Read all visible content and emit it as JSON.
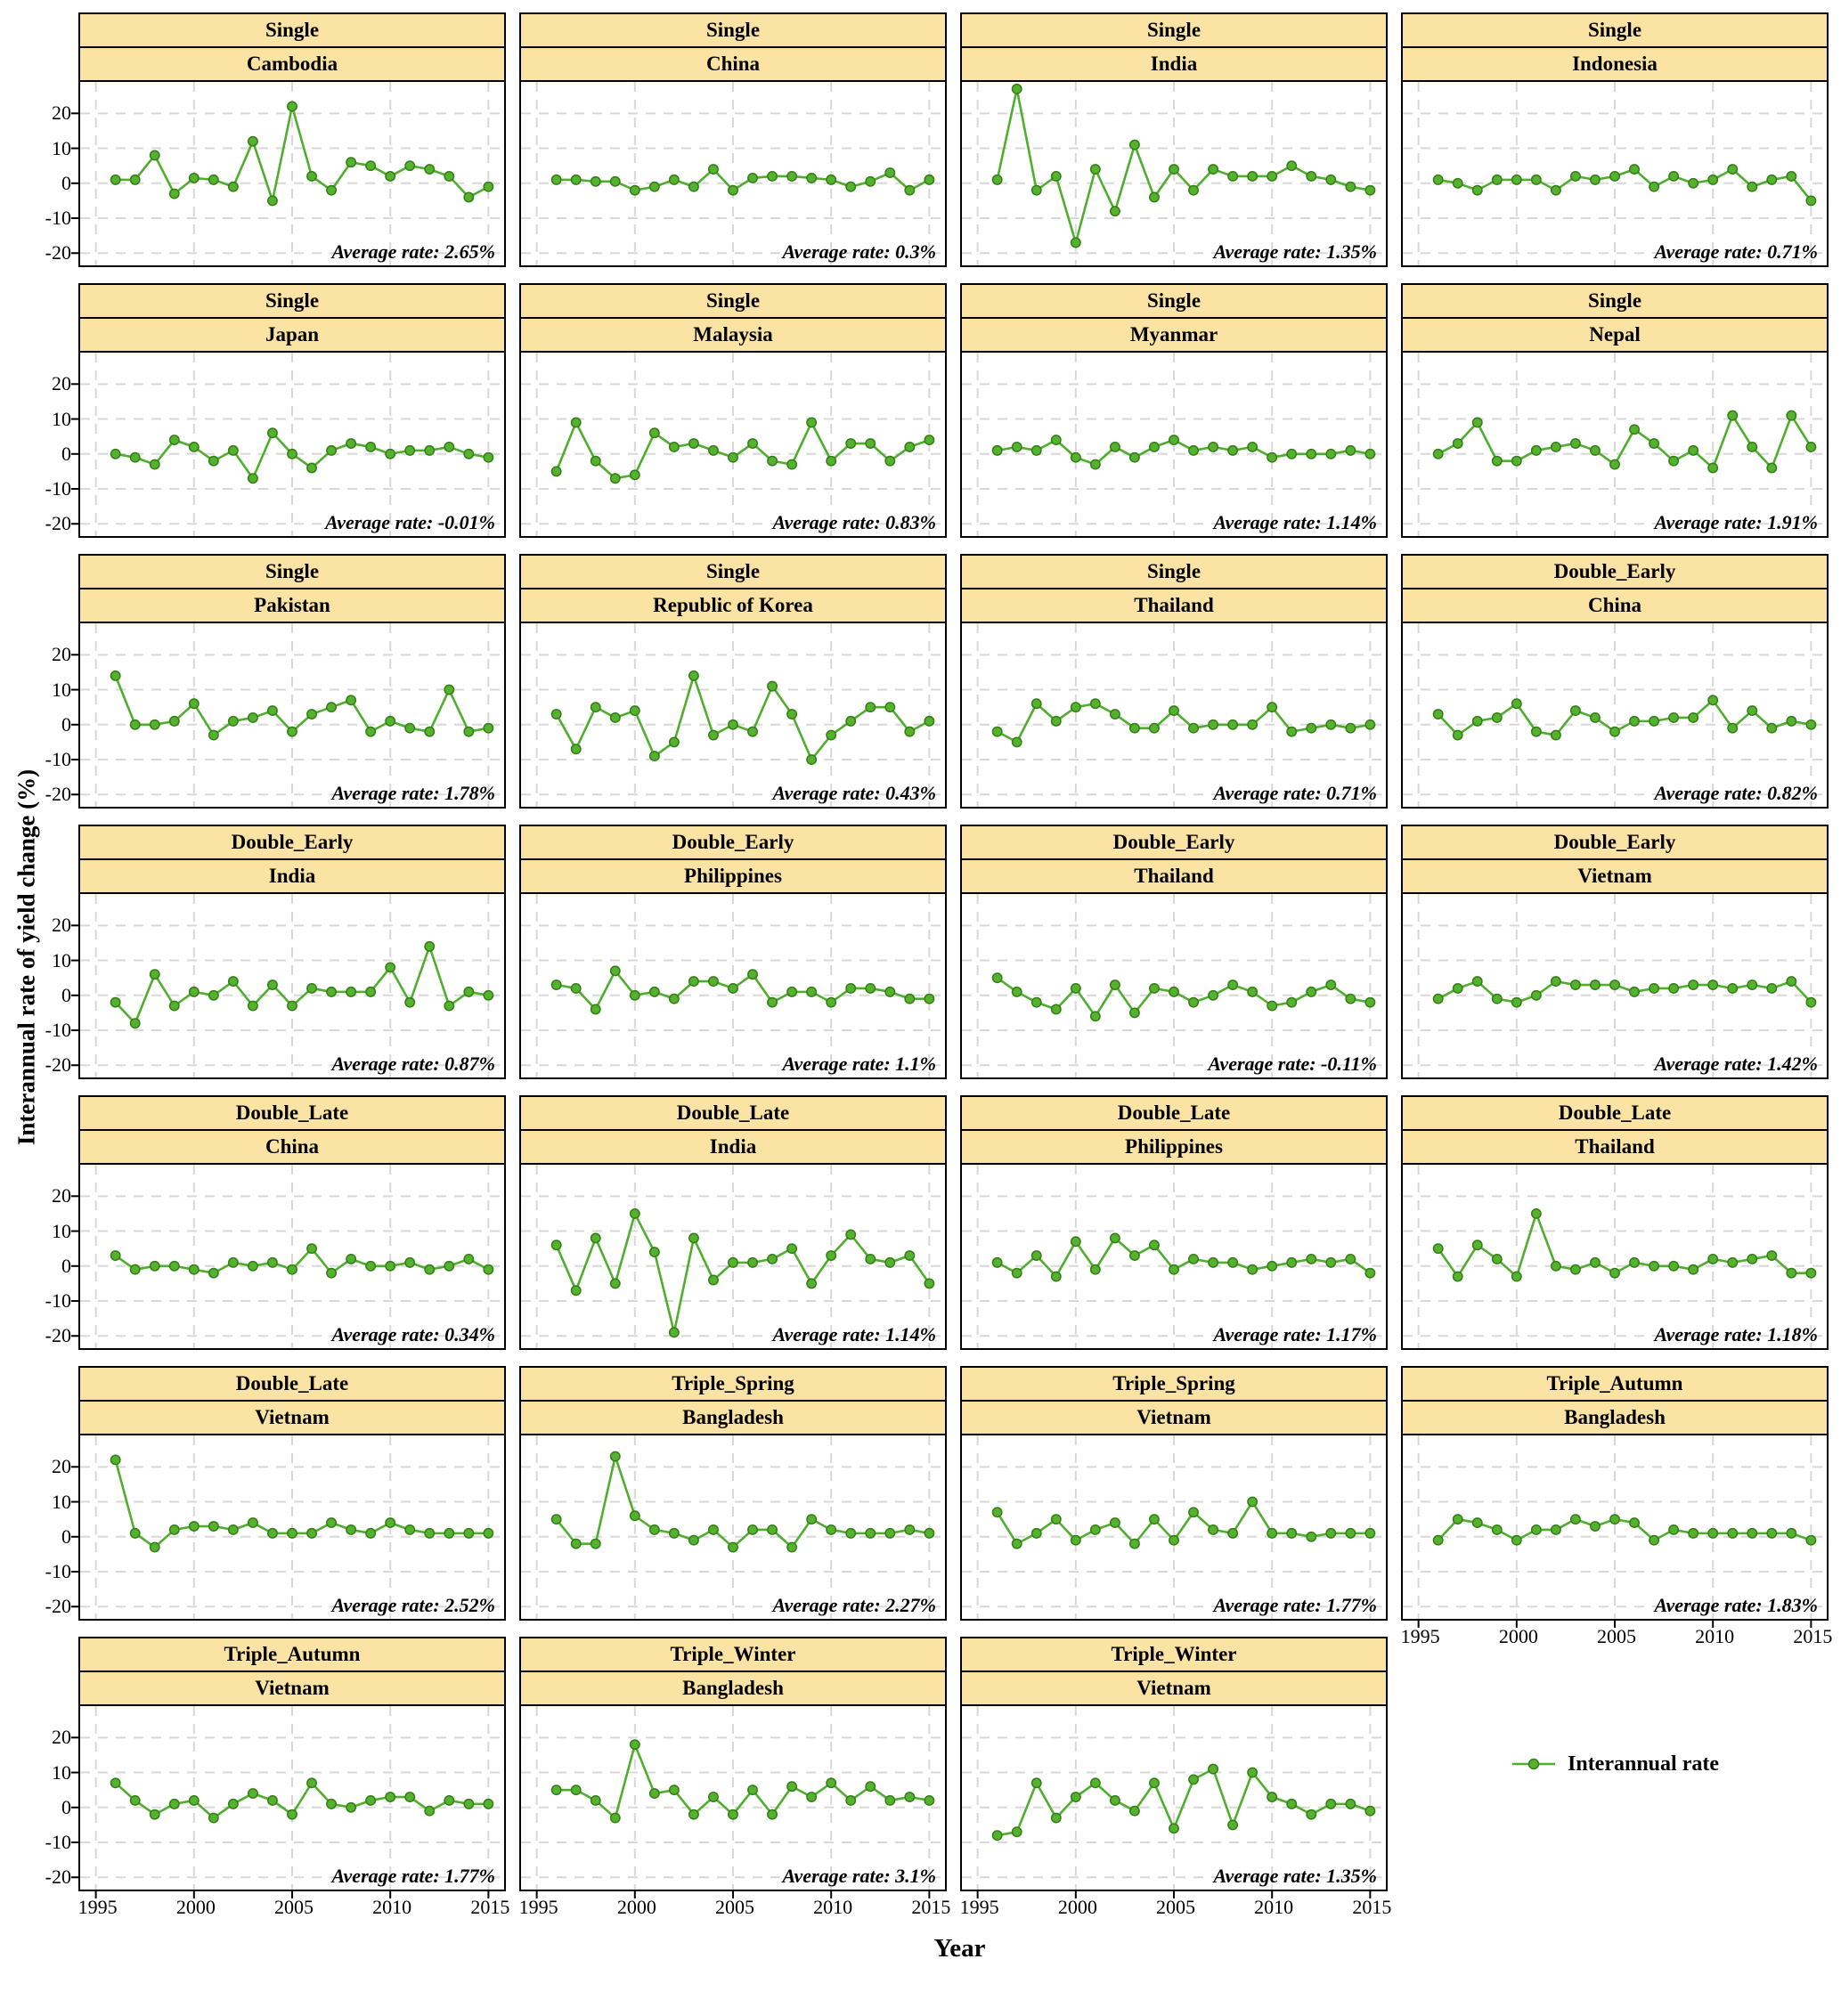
{
  "chart_data": {
    "type": "line",
    "x_label": "Year",
    "y_label": "Interannual rate of yield change (%)",
    "x": [
      1996,
      1997,
      1998,
      1999,
      2000,
      2001,
      2002,
      2003,
      2004,
      2005,
      2006,
      2007,
      2008,
      2009,
      2010,
      2011,
      2012,
      2013,
      2014,
      2015
    ],
    "x_ticks": [
      1995,
      2000,
      2005,
      2010,
      2015
    ],
    "y_ticks": [
      20,
      10,
      0,
      -10,
      -20
    ],
    "x_domain": [
      1994.2,
      2015.8
    ],
    "y_domain": [
      -23.5,
      29
    ],
    "grid": "dashed",
    "legend_position": "bottom-right",
    "panels": [
      {
        "system": "Single",
        "country": "Cambodia",
        "average_label": "Average rate: 2.65%",
        "values": [
          1,
          1,
          8,
          -3,
          1.5,
          1,
          -1,
          12,
          -5,
          22,
          2,
          -2,
          6,
          5,
          2,
          5,
          4,
          2,
          -4,
          -1
        ]
      },
      {
        "system": "Single",
        "country": "China",
        "average_label": "Average rate: 0.3%",
        "values": [
          1,
          1,
          0.5,
          0.5,
          -2,
          -1,
          1,
          -1,
          4,
          -2,
          1.5,
          2,
          2,
          1.5,
          1,
          -1,
          0.5,
          3,
          -2,
          1
        ]
      },
      {
        "system": "Single",
        "country": "India",
        "average_label": "Average rate: 1.35%",
        "values": [
          1,
          27,
          -2,
          2,
          -17,
          4,
          -8,
          11,
          -4,
          4,
          -2,
          4,
          2,
          2,
          2,
          5,
          2,
          1,
          -1,
          -2
        ]
      },
      {
        "system": "Single",
        "country": "Indonesia",
        "average_label": "Average rate: 0.71%",
        "values": [
          1,
          0,
          -2,
          1,
          1,
          1,
          -2,
          2,
          1,
          2,
          4,
          -1,
          2,
          0,
          1,
          4,
          -1,
          1,
          2,
          -5
        ]
      },
      {
        "system": "Single",
        "country": "Japan",
        "average_label": "Average rate: -0.01%",
        "values": [
          0,
          -1,
          -3,
          4,
          2,
          -2,
          1,
          -7,
          6,
          0,
          -4,
          1,
          3,
          2,
          0,
          1,
          1,
          2,
          0,
          -1
        ]
      },
      {
        "system": "Single",
        "country": "Malaysia",
        "average_label": "Average rate: 0.83%",
        "values": [
          -5,
          9,
          -2,
          -7,
          -6,
          6,
          2,
          3,
          1,
          -1,
          3,
          -2,
          -3,
          9,
          -2,
          3,
          3,
          -2,
          2,
          4
        ]
      },
      {
        "system": "Single",
        "country": "Myanmar",
        "average_label": "Average rate: 1.14%",
        "values": [
          1,
          2,
          1,
          4,
          -1,
          -3,
          2,
          -1,
          2,
          4,
          1,
          2,
          1,
          2,
          -1,
          0,
          0,
          0,
          1,
          0
        ]
      },
      {
        "system": "Single",
        "country": "Nepal",
        "average_label": "Average rate: 1.91%",
        "values": [
          0,
          3,
          9,
          -2,
          -2,
          1,
          2,
          3,
          1,
          -3,
          7,
          3,
          -2,
          1,
          -4,
          11,
          2,
          -4,
          11,
          2
        ]
      },
      {
        "system": "Single",
        "country": "Pakistan",
        "average_label": "Average rate: 1.78%",
        "values": [
          14,
          0,
          0,
          1,
          6,
          -3,
          1,
          2,
          4,
          -2,
          3,
          5,
          7,
          -2,
          1,
          -1,
          -2,
          10,
          -2,
          -1
        ]
      },
      {
        "system": "Single",
        "country": "Republic of Korea",
        "average_label": "Average rate: 0.43%",
        "values": [
          3,
          -7,
          5,
          2,
          4,
          -9,
          -5,
          14,
          -3,
          0,
          -2,
          11,
          3,
          -10,
          -3,
          1,
          5,
          5,
          -2,
          1
        ]
      },
      {
        "system": "Single",
        "country": "Thailand",
        "average_label": "Average rate: 0.71%",
        "values": [
          -2,
          -5,
          6,
          1,
          5,
          6,
          3,
          -1,
          -1,
          4,
          -1,
          0,
          0,
          0,
          5,
          -2,
          -1,
          0,
          -1,
          0
        ]
      },
      {
        "system": "Double_Early",
        "country": "China",
        "average_label": "Average rate: 0.82%",
        "values": [
          3,
          -3,
          1,
          2,
          6,
          -2,
          -3,
          4,
          2,
          -2,
          1,
          1,
          2,
          2,
          7,
          -1,
          4,
          -1,
          1,
          0
        ]
      },
      {
        "system": "Double_Early",
        "country": "India",
        "average_label": "Average rate: 0.87%",
        "values": [
          -2,
          -8,
          6,
          -3,
          1,
          0,
          4,
          -3,
          3,
          -3,
          2,
          1,
          1,
          1,
          8,
          -2,
          14,
          -3,
          1,
          0
        ]
      },
      {
        "system": "Double_Early",
        "country": "Philippines",
        "average_label": "Average rate: 1.1%",
        "values": [
          3,
          2,
          -4,
          7,
          0,
          1,
          -1,
          4,
          4,
          2,
          6,
          -2,
          1,
          1,
          -2,
          2,
          2,
          1,
          -1,
          -1
        ]
      },
      {
        "system": "Double_Early",
        "country": "Thailand",
        "average_label": "Average rate: -0.11%",
        "values": [
          5,
          1,
          -2,
          -4,
          2,
          -6,
          3,
          -5,
          2,
          1,
          -2,
          0,
          3,
          1,
          -3,
          -2,
          1,
          3,
          -1,
          -2
        ]
      },
      {
        "system": "Double_Early",
        "country": "Vietnam",
        "average_label": "Average rate: 1.42%",
        "values": [
          -1,
          2,
          4,
          -1,
          -2,
          0,
          4,
          3,
          3,
          3,
          1,
          2,
          2,
          3,
          3,
          2,
          3,
          2,
          4,
          -2
        ]
      },
      {
        "system": "Double_Late",
        "country": "China",
        "average_label": "Average rate: 0.34%",
        "values": [
          3,
          -1,
          0,
          0,
          -1,
          -2,
          1,
          0,
          1,
          -1,
          5,
          -2,
          2,
          0,
          0,
          1,
          -1,
          0,
          2,
          -1
        ]
      },
      {
        "system": "Double_Late",
        "country": "India",
        "average_label": "Average rate: 1.14%",
        "values": [
          6,
          -7,
          8,
          -5,
          15,
          4,
          -19,
          8,
          -4,
          1,
          1,
          2,
          5,
          -5,
          3,
          9,
          2,
          1,
          3,
          -5
        ]
      },
      {
        "system": "Double_Late",
        "country": "Philippines",
        "average_label": "Average rate: 1.17%",
        "values": [
          1,
          -2,
          3,
          -3,
          7,
          -1,
          8,
          3,
          6,
          -1,
          2,
          1,
          1,
          -1,
          0,
          1,
          2,
          1,
          2,
          -2
        ]
      },
      {
        "system": "Double_Late",
        "country": "Thailand",
        "average_label": "Average rate: 1.18%",
        "values": [
          5,
          -3,
          6,
          2,
          -3,
          15,
          0,
          -1,
          1,
          -2,
          1,
          0,
          0,
          -1,
          2,
          1,
          2,
          3,
          -2,
          -2
        ]
      },
      {
        "system": "Double_Late",
        "country": "Vietnam",
        "average_label": "Average rate: 2.52%",
        "values": [
          22,
          1,
          -3,
          2,
          3,
          3,
          2,
          4,
          1,
          1,
          1,
          4,
          2,
          1,
          4,
          2,
          1,
          1,
          1,
          1
        ]
      },
      {
        "system": "Triple_Spring",
        "country": "Bangladesh",
        "average_label": "Average rate: 2.27%",
        "values": [
          5,
          -2,
          -2,
          23,
          6,
          2,
          1,
          -1,
          2,
          -3,
          2,
          2,
          -3,
          5,
          2,
          1,
          1,
          1,
          2,
          1
        ]
      },
      {
        "system": "Triple_Spring",
        "country": "Vietnam",
        "average_label": "Average rate: 1.77%",
        "values": [
          7,
          -2,
          1,
          5,
          -1,
          2,
          4,
          -2,
          5,
          -1,
          7,
          2,
          1,
          10,
          1,
          1,
          0,
          1,
          1,
          1
        ]
      },
      {
        "system": "Triple_Autumn",
        "country": "Bangladesh",
        "average_label": "Average rate: 1.83%",
        "values": [
          -1,
          5,
          4,
          2,
          -1,
          2,
          2,
          5,
          3,
          5,
          4,
          -1,
          2,
          1,
          1,
          1,
          1,
          1,
          1,
          -1
        ]
      },
      {
        "system": "Triple_Autumn",
        "country": "Vietnam",
        "average_label": "Average rate: 1.77%",
        "values": [
          7,
          2,
          -2,
          1,
          2,
          -3,
          1,
          4,
          2,
          -2,
          7,
          1,
          0,
          2,
          3,
          3,
          -1,
          2,
          1,
          1
        ]
      },
      {
        "system": "Triple_Winter",
        "country": "Bangladesh",
        "average_label": "Average rate: 3.1%",
        "values": [
          5,
          5,
          2,
          -3,
          18,
          4,
          5,
          -2,
          3,
          -2,
          5,
          -2,
          6,
          3,
          7,
          2,
          6,
          2,
          3,
          2
        ]
      },
      {
        "system": "Triple_Winter",
        "country": "Vietnam",
        "average_label": "Average rate: 1.35%",
        "values": [
          -8,
          -7,
          7,
          -3,
          3,
          7,
          2,
          -1,
          7,
          -6,
          8,
          11,
          -5,
          10,
          3,
          1,
          -2,
          1,
          1,
          -1
        ]
      }
    ]
  },
  "legend": {
    "label": "Interannual rate"
  },
  "colors": {
    "line": "#4fae2e",
    "point_fill": "#55b22e",
    "point_stroke": "#357d17",
    "strip_bg": "#fbe3a3",
    "grid": "#d8d8d8",
    "border": "#000000"
  }
}
